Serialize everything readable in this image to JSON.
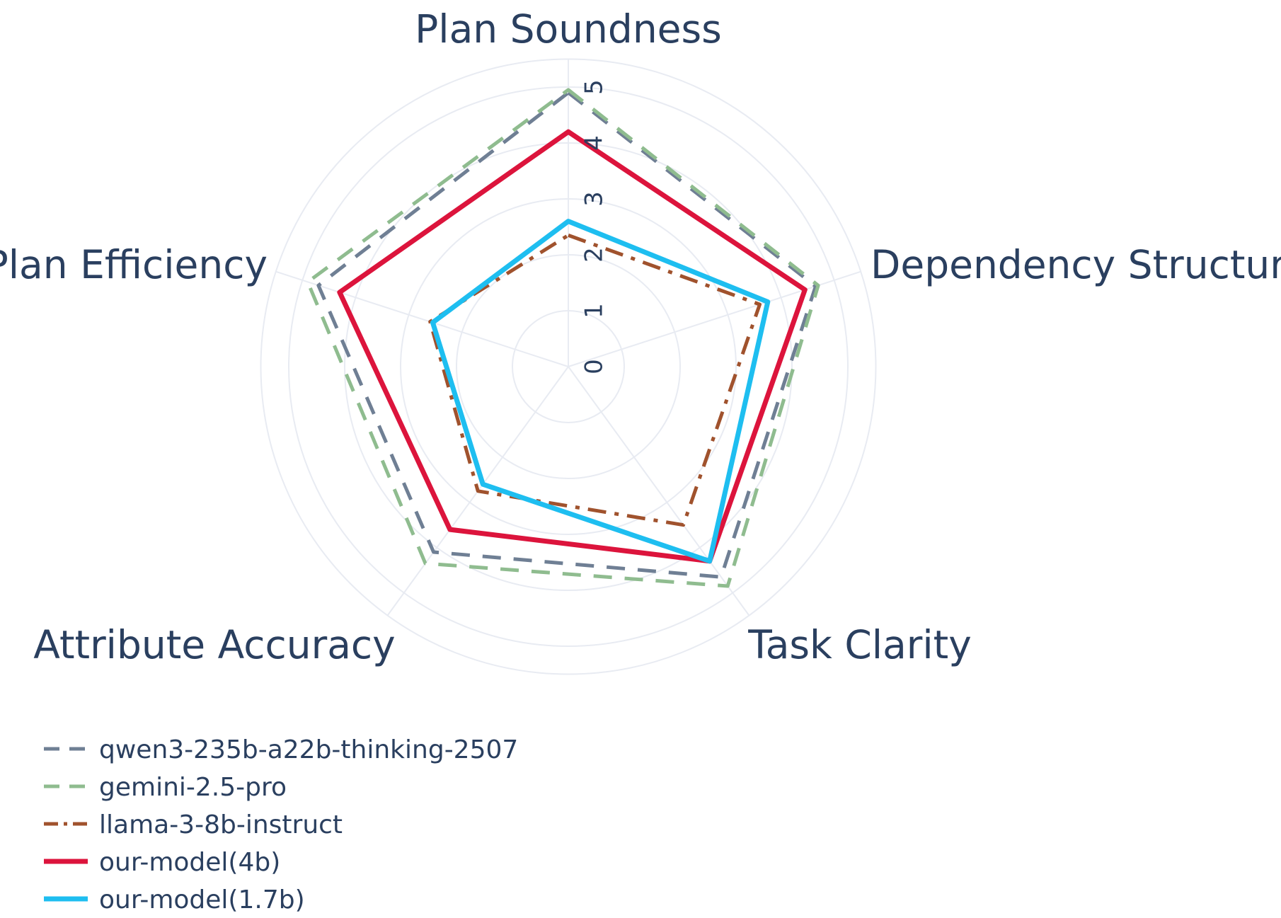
{
  "chart_data": {
    "type": "radar",
    "axes": [
      "Plan Soundness",
      "Dependency Structure",
      "Task Clarity",
      "Attribute Accuracy",
      "Plan Efficiency"
    ],
    "radial_range": [
      0,
      5
    ],
    "radial_ticks": [
      "0",
      "1",
      "2",
      "3",
      "4",
      "5"
    ],
    "grid": true,
    "legend_position": "bottom-left",
    "series": [
      {
        "name": "qwen3-235b-a22b-thinking-2507",
        "values": [
          4.9,
          4.65,
          4.65,
          4.1,
          4.7
        ],
        "color": "#6f7f94",
        "dash": "dash"
      },
      {
        "name": "gemini-2.5-pro",
        "values": [
          4.95,
          4.7,
          4.85,
          4.35,
          4.9
        ],
        "color": "#8fbc8f",
        "dash": "dash"
      },
      {
        "name": "llama-3-8b-instruct",
        "values": [
          2.35,
          3.6,
          3.5,
          2.75,
          2.6
        ],
        "color": "#a0522d",
        "dash": "dashdot"
      },
      {
        "name": "our-model(4b)",
        "values": [
          4.2,
          4.45,
          4.3,
          3.6,
          4.3
        ],
        "color": "#dc143c",
        "dash": "solid"
      },
      {
        "name": "our-model(1.7b)",
        "values": [
          2.6,
          3.75,
          4.3,
          2.6,
          2.55
        ],
        "color": "#1ebef0",
        "dash": "solid"
      }
    ]
  }
}
